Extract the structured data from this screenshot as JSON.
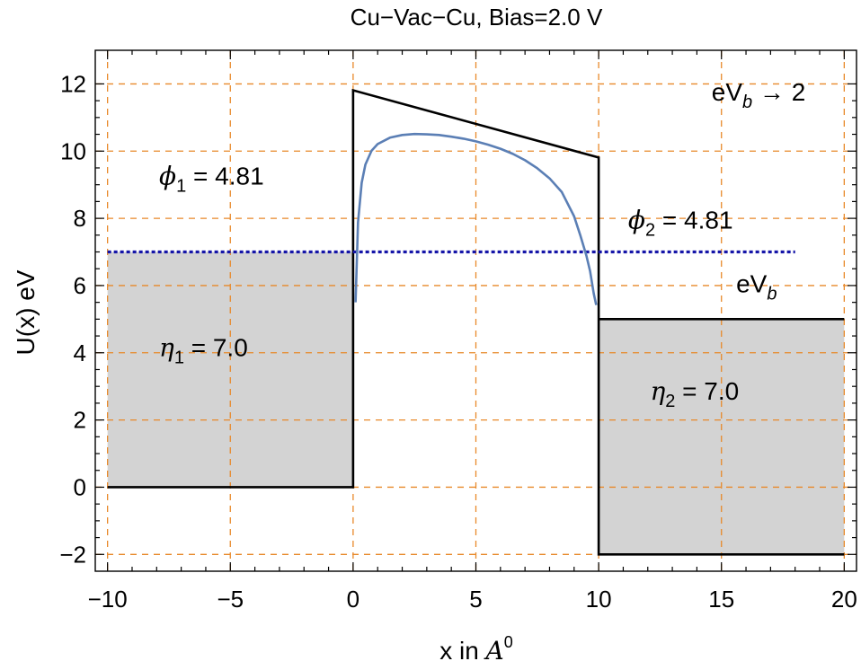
{
  "chart_data": {
    "type": "line",
    "title": "Cu−Vac−Cu,  Bias=2.0 V",
    "xlabel": {
      "base": "x in ",
      "var": "A",
      "sup": "0"
    },
    "ylabel": "U(x) eV",
    "xlim": [
      -10.5,
      20.5
    ],
    "ylim": [
      -2.5,
      13
    ],
    "xticks": [
      -10,
      -5,
      0,
      5,
      10,
      15,
      20
    ],
    "xtick_labels": [
      "−10",
      "−5",
      "0",
      "5",
      "10",
      "15",
      "20"
    ],
    "yticks": [
      -2,
      0,
      2,
      4,
      6,
      8,
      10,
      12
    ],
    "ytick_labels": [
      "−2",
      "0",
      "2",
      "4",
      "6",
      "8",
      "10",
      "12"
    ],
    "grid": {
      "on": true,
      "style": "dashed",
      "color": "#e8892a",
      "xs": [
        -10,
        -5,
        0,
        5,
        10,
        15,
        20
      ],
      "ys": [
        -2,
        0,
        2,
        4,
        6,
        8,
        10,
        12
      ]
    },
    "colors": {
      "barrier": "#000000",
      "image_potential": "#5b7fb5",
      "fermi_line": "#1515a8",
      "fill": "#d3d3d3",
      "grid": "#e8892a"
    },
    "regions": [
      {
        "x": [
          -10,
          0
        ],
        "bottom": 0,
        "top": 7
      },
      {
        "x": [
          10,
          20
        ],
        "bottom": -2,
        "top": 5
      }
    ],
    "barrier_line": [
      [
        -10,
        0
      ],
      [
        0,
        0
      ],
      [
        0,
        11.81
      ],
      [
        10,
        9.81
      ],
      [
        10,
        -2
      ],
      [
        20,
        -2
      ]
    ],
    "right_level": {
      "x": [
        10,
        20
      ],
      "y": 5
    },
    "fermi_line": {
      "x": [
        -10,
        18
      ],
      "y": 7
    },
    "image_potential": {
      "x": [
        0.1,
        0.2,
        0.35,
        0.5,
        0.75,
        1,
        1.5,
        2,
        2.5,
        3,
        3.5,
        4,
        4.5,
        5,
        5.5,
        6,
        6.5,
        7,
        7.5,
        8,
        8.5,
        9,
        9.25,
        9.5,
        9.65,
        9.8,
        9.9
      ],
      "y": [
        5.5,
        7.88,
        9.06,
        9.6,
        10.01,
        10.21,
        10.4,
        10.48,
        10.51,
        10.5,
        10.48,
        10.43,
        10.37,
        10.29,
        10.19,
        10.07,
        9.92,
        9.73,
        9.49,
        9.19,
        8.78,
        8.06,
        7.5,
        6.89,
        6.43,
        5.76,
        5.42
      ]
    },
    "annotations": [
      {
        "base": "ϕ",
        "sub": "1",
        "rest": " = 4.81",
        "x": -7.9,
        "y": 9
      },
      {
        "base": "ϕ",
        "sub": "2",
        "rest": " = 4.81",
        "x": 11.2,
        "y": 7.7
      },
      {
        "base": "η",
        "sub": "1",
        "rest": " = 7.0",
        "x": -7.9,
        "y": 3.9
      },
      {
        "base": "η",
        "sub": "2",
        "rest": " = 7.0",
        "x": 12.1,
        "y": 2.6
      },
      {
        "pre": "eV",
        "sub": "b",
        "rest": "",
        "x": 15.6,
        "y": 5.8
      },
      {
        "pre": "eV",
        "sub": "b",
        "rest": " → 2",
        "x": 14.6,
        "y": 11.5
      }
    ]
  }
}
